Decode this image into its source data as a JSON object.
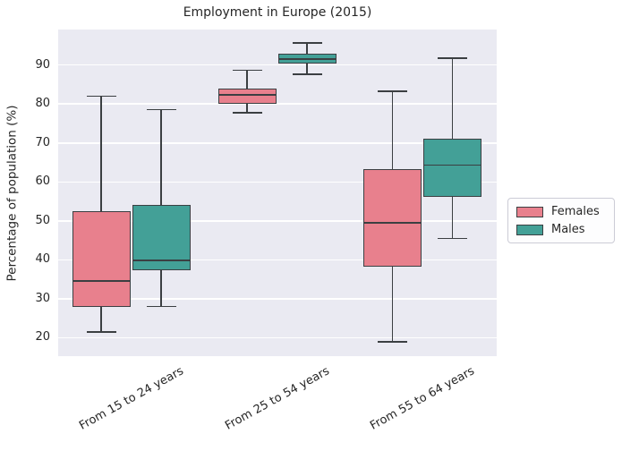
{
  "title": "Employment in Europe (2015)",
  "ylabel": "Percentage of population (%)",
  "legend": {
    "position": "right",
    "entries": [
      {
        "label": "Females",
        "color": "#e8808d"
      },
      {
        "label": "Males",
        "color": "#43a097"
      }
    ]
  },
  "colors": {
    "plot_background": "#eaeaf2",
    "gridline": "#ffffff",
    "box_edge": "#3b3f42",
    "females_fill": "#e8808d",
    "males_fill": "#43a097",
    "text": "#262626"
  },
  "chart_data": {
    "type": "boxplot",
    "title": "Employment in Europe (2015)",
    "ylabel": "Percentage of population (%)",
    "xlabel": "",
    "grid": true,
    "legend_position": "center right, outside axes",
    "categories": [
      "From 15 to 24 years",
      "From 25 to 54 years",
      "From 55 to 64 years"
    ],
    "yticks": [
      20,
      30,
      40,
      50,
      60,
      70,
      80,
      90
    ],
    "ylim": [
      15,
      99
    ],
    "series": [
      {
        "name": "Females",
        "color": "#e8808d",
        "boxes": [
          {
            "whisker_low": 21.5,
            "q1": 28.0,
            "median": 34.5,
            "q3": 52.5,
            "whisker_high": 82.0
          },
          {
            "whisker_low": 77.8,
            "q1": 80.0,
            "median": 82.3,
            "q3": 84.0,
            "whisker_high": 88.7
          },
          {
            "whisker_low": 19.0,
            "q1": 38.2,
            "median": 49.5,
            "q3": 63.2,
            "whisker_high": 83.3
          }
        ]
      },
      {
        "name": "Males",
        "color": "#43a097",
        "boxes": [
          {
            "whisker_low": 28.0,
            "q1": 37.3,
            "median": 39.8,
            "q3": 54.0,
            "whisker_high": 78.6
          },
          {
            "whisker_low": 87.7,
            "q1": 90.5,
            "median": 91.5,
            "q3": 92.9,
            "whisker_high": 95.7
          },
          {
            "whisker_low": 45.5,
            "q1": 56.2,
            "median": 64.3,
            "q3": 71.2,
            "whisker_high": 91.7
          }
        ]
      }
    ]
  }
}
